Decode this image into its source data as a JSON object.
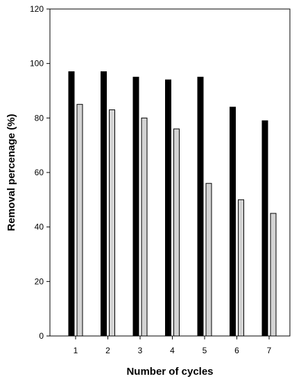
{
  "chart_data": {
    "type": "bar",
    "title": "",
    "xlabel": "Number of cycles",
    "ylabel": "Removal percenage (%)",
    "ylim": [
      0,
      120
    ],
    "yticks": [
      0,
      20,
      40,
      60,
      80,
      100,
      120
    ],
    "categories": [
      "1",
      "2",
      "3",
      "4",
      "5",
      "6",
      "7"
    ],
    "series": [
      {
        "values": [
          97,
          97,
          95,
          94,
          95,
          84,
          79
        ],
        "color": "#000000"
      },
      {
        "values": [
          85,
          83,
          80,
          76,
          56,
          50,
          45
        ],
        "color": "#d3d3d3"
      }
    ],
    "grid": false,
    "legend": "none"
  }
}
